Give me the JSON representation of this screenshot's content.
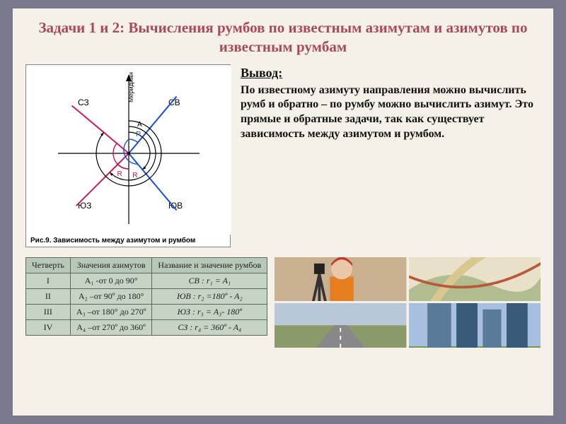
{
  "title": "Задачи 1 и 2: Вычисления румбов по известным азимутам и азимутов по известным румбам",
  "figure": {
    "caption": "Рис.9. Зависимость между азимутом и румбом",
    "vaxis_label": "Меридиан",
    "quad_labels": {
      "ne": "СВ",
      "nw": "СЗ",
      "se": "ЮВ",
      "sw": "ЮЗ"
    },
    "marker_labels": {
      "A": "A",
      "R": "R"
    },
    "colors": {
      "axis": "#000000",
      "line_ne": "#1a4fd6",
      "line_nw": "#1a4fd6",
      "line_se": "#d11a5a",
      "line_sw": "#d11a5a",
      "arc_outer": "#000000",
      "arc_r_ne": "#1a4fd6",
      "arc_r_se": "#c4115a",
      "arc_r_sw": "#c4115a",
      "arc_r_nw": "#1a4fd6"
    },
    "line_angles_deg": {
      "ne": 40,
      "nw": 140,
      "se": 310,
      "sw": 225
    }
  },
  "conclusion": {
    "heading": "Вывод:",
    "body": "По известному азимуту направления можно вычислить румб и обратно – по румбу можно вычислить азимут. Это прямые и обратные задачи, так как существует зависимость между азимутом и румбом."
  },
  "table": {
    "headers": [
      "Четверть",
      "Значения азимутов",
      "Название и значение румбов"
    ],
    "rows": [
      {
        "q": "I",
        "az": "А₁ -от    0 до 90°",
        "rb": "СВ : r₁ = A₁"
      },
      {
        "q": "II",
        "az": "А₂ –от   90º до 180°",
        "rb": "ЮВ : r₂ =180º -  A₂"
      },
      {
        "q": "III",
        "az": "А₃ –от   180° до 270º",
        "rb": "ЮЗ :  r₃ = A₃- 180º"
      },
      {
        "q": "IV",
        "az": "А₄ –от  270º до 360º",
        "rb": "СЗ : r₄ = 360º - A₄"
      }
    ]
  },
  "thumbs": {
    "surveyor": {
      "bg": "#c8b090",
      "helmet": "#c0392b",
      "vest": "#e67e22",
      "tripod": "#333"
    },
    "map": {
      "bg": "#e8e0c8",
      "road": "#d8c890",
      "green": "#7a9a5a"
    },
    "runway": {
      "sky": "#b8c8d8",
      "ground": "#8a9a6a",
      "strip": "#888"
    },
    "city": {
      "sky": "#a8c0e0",
      "bldg1": "#5a7a9a",
      "bldg2": "#3a5a7a",
      "grass": "#6a9a4a"
    }
  }
}
